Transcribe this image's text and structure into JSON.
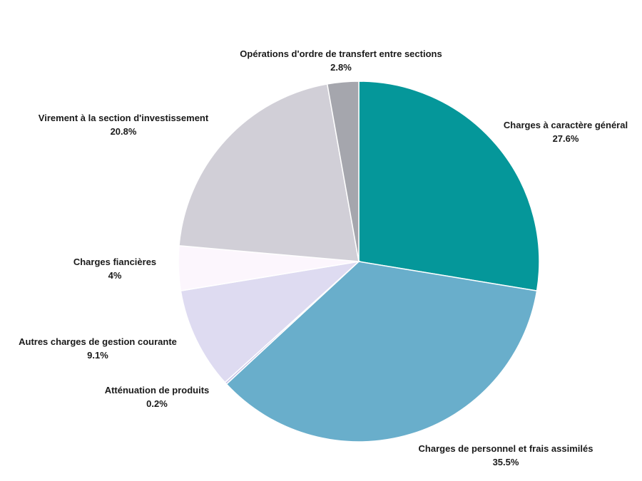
{
  "chart_data": {
    "type": "pie",
    "title": "",
    "legend": "none",
    "start_angle_deg": 0,
    "direction": "clockwise",
    "slices": [
      {
        "label": "Charges à caractère général",
        "value": 27.6,
        "display": "27.6%",
        "color": "#05979a"
      },
      {
        "label": "Charges de personnel et frais assimilés",
        "value": 35.5,
        "display": "35.5%",
        "color": "#69aecb"
      },
      {
        "label": "Atténuation de produits",
        "value": 0.2,
        "display": "0.2%",
        "color": "#c8c3e8"
      },
      {
        "label": "Autres charges de gestion courante",
        "value": 9.1,
        "display": "9.1%",
        "color": "#dedbf1"
      },
      {
        "label": "Charges fiancières",
        "value": 4,
        "display": "4%",
        "color": "#fcf6fd"
      },
      {
        "label": "Virement à la section d'investissement",
        "value": 20.8,
        "display": "20.8%",
        "color": "#d1cfd7"
      },
      {
        "label": "Opérations d'ordre de transfert entre sections",
        "value": 2.8,
        "display": "2.8%",
        "color": "#a5a6ad"
      }
    ]
  }
}
